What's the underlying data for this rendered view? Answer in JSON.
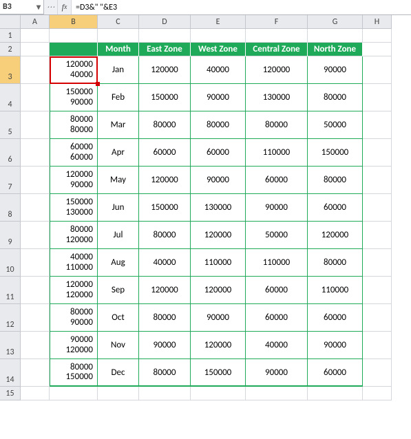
{
  "namebox": "B3",
  "formula": "=D3&\" \"&E3",
  "columns": [
    "A",
    "B",
    "C",
    "D",
    "E",
    "F",
    "G",
    "H"
  ],
  "selected_col": "B",
  "selected_row": 3,
  "colors": {
    "header_bg": "#1faa59",
    "header_fg": "#ffffff",
    "sel_hdr_bg": "#f7cf7a",
    "selection_border": "#d40000",
    "table_border": "#1faa59"
  },
  "table": {
    "headers": [
      "",
      "Month",
      "East Zone",
      "West Zone",
      "Central Zone",
      "North Zone"
    ],
    "rows": [
      {
        "b1": "120000",
        "b2": "40000",
        "month": "Jan",
        "east": "120000",
        "west": "40000",
        "central": "120000",
        "north": "90000"
      },
      {
        "b1": "150000",
        "b2": "90000",
        "month": "Feb",
        "east": "150000",
        "west": "90000",
        "central": "130000",
        "north": "80000"
      },
      {
        "b1": "80000",
        "b2": "80000",
        "month": "Mar",
        "east": "80000",
        "west": "80000",
        "central": "80000",
        "north": "50000"
      },
      {
        "b1": "60000",
        "b2": "60000",
        "month": "Apr",
        "east": "60000",
        "west": "60000",
        "central": "110000",
        "north": "150000"
      },
      {
        "b1": "120000",
        "b2": "90000",
        "month": "May",
        "east": "120000",
        "west": "90000",
        "central": "60000",
        "north": "80000"
      },
      {
        "b1": "150000",
        "b2": "130000",
        "month": "Jun",
        "east": "150000",
        "west": "130000",
        "central": "90000",
        "north": "60000"
      },
      {
        "b1": "80000",
        "b2": "120000",
        "month": "Jul",
        "east": "80000",
        "west": "120000",
        "central": "50000",
        "north": "120000"
      },
      {
        "b1": "40000",
        "b2": "110000",
        "month": "Aug",
        "east": "40000",
        "west": "110000",
        "central": "110000",
        "north": "80000"
      },
      {
        "b1": "120000",
        "b2": "120000",
        "month": "Sep",
        "east": "120000",
        "west": "120000",
        "central": "60000",
        "north": "110000"
      },
      {
        "b1": "80000",
        "b2": "90000",
        "month": "Oct",
        "east": "80000",
        "west": "90000",
        "central": "60000",
        "north": "60000"
      },
      {
        "b1": "90000",
        "b2": "120000",
        "month": "Nov",
        "east": "90000",
        "west": "120000",
        "central": "40000",
        "north": "90000"
      },
      {
        "b1": "80000",
        "b2": "150000",
        "month": "Dec",
        "east": "80000",
        "west": "150000",
        "central": "90000",
        "north": "60000"
      }
    ]
  }
}
